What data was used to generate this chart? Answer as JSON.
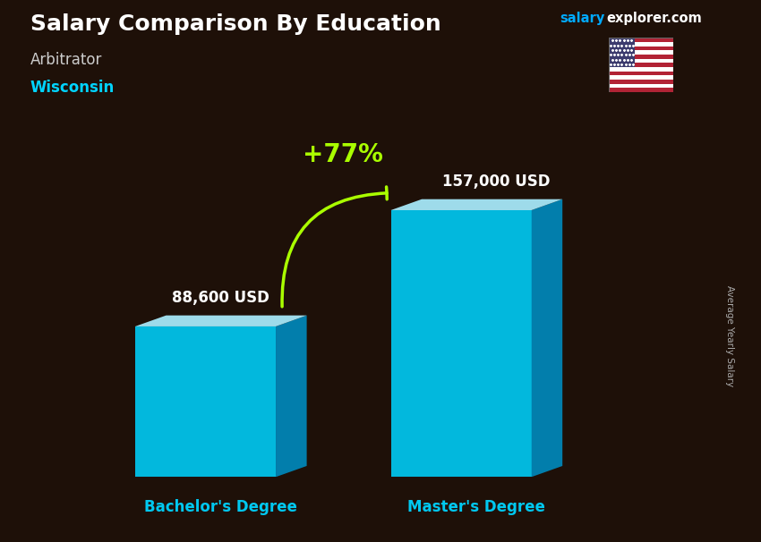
{
  "title": "Salary Comparison By Education",
  "subtitle_job": "Arbitrator",
  "subtitle_location": "Wisconsin",
  "brand": "salary",
  "brand2": "explorer.com",
  "ylabel": "Average Yearly Salary",
  "categories": [
    "Bachelor's Degree",
    "Master's Degree"
  ],
  "values": [
    88600,
    157000
  ],
  "value_labels": [
    "88,600 USD",
    "157,000 USD"
  ],
  "pct_change": "+77%",
  "bar_color_front": "#00c8f0",
  "bar_color_top": "#aaeeff",
  "bar_color_side": "#0088bb",
  "bg_color": "#1e1008",
  "title_color": "#ffffff",
  "subtitle_job_color": "#cccccc",
  "subtitle_loc_color": "#00d4ff",
  "xlabel_color": "#00c8f0",
  "value_color": "#ffffff",
  "pct_color": "#aaff00",
  "arrow_color": "#aaff00",
  "brand_color1": "#00aaff",
  "brand_color2": "#ffffff",
  "ylim": [
    0,
    185000
  ]
}
